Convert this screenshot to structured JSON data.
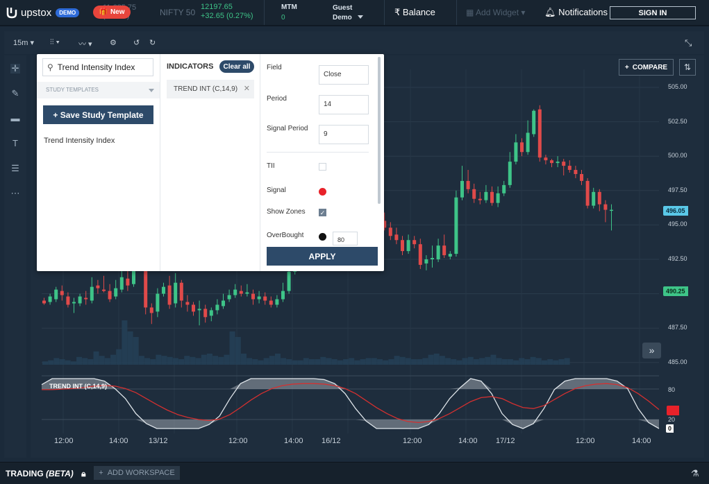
{
  "app": {
    "brand": "upstox",
    "demo_badge": "DEMO",
    "new_label": "New",
    "ghost_price": "11,685.75",
    "ghost_change": "(0.27%)"
  },
  "ticker": {
    "name": "NIFTY 50",
    "value": "12197.65",
    "change": "+32.65 (0.27%)"
  },
  "mtm": {
    "label": "MTM",
    "value": "0"
  },
  "user": {
    "line1": "Guest",
    "line2": "Demo"
  },
  "header": {
    "balance_label": "Balance",
    "add_widget_label": "Add Widget",
    "notifications_label": "Notifications",
    "signin_label": "SIGN IN",
    "currency_symbol": "₹"
  },
  "toolbar": {
    "interval": "15m",
    "compare_label": "COMPARE"
  },
  "panel": {
    "search_value": "Trend Intensity Index",
    "study_templates_label": "STUDY TEMPLATES",
    "save_template_label": "+ Save Study Template",
    "results": [
      "Trend Intensity Index"
    ],
    "indicators_title": "INDICATORS",
    "clear_all_label": "Clear all",
    "active_indicator": "TREND INT (C,14,9)",
    "fields": {
      "field_label": "Field",
      "field_value": "Close",
      "period_label": "Period",
      "period_value": "14",
      "signal_period_label": "Signal Period",
      "signal_period_value": "9",
      "tii_label": "TII",
      "signal_label": "Signal",
      "show_zones_label": "Show Zones",
      "overbought_label": "OverBought",
      "overbought_value": "80"
    },
    "apply_label": "APPLY",
    "signal_color": "#e8222a",
    "overbought_color": "#111111"
  },
  "chart_data": {
    "type": "candlestick",
    "y_axis_labels": [
      "505.00",
      "502.50",
      "500.00",
      "497.50",
      "495.00",
      "492.50",
      "490.25",
      "487.50",
      "485.00"
    ],
    "current_price": "496.05",
    "marker_price": "490.25",
    "x_axis_labels": [
      "12:00",
      "14:00",
      "13/12",
      "12:00",
      "14:00",
      "16/12",
      "12:00",
      "14:00",
      "17/12",
      "12:00",
      "14:00"
    ],
    "indicator": {
      "name": "TREND INT (C,14,9)",
      "levels": [
        "80",
        "20"
      ],
      "current_tii": "0",
      "current_signal": "38"
    },
    "colors": {
      "up": "#3ec488",
      "down": "#e04a4a",
      "signal": "#d43030",
      "tii": "#dfe5ea"
    }
  },
  "bottom": {
    "trading_label": "TRADING",
    "beta_label": "(BETA)",
    "add_workspace_label": "ADD WORKSPACE"
  }
}
